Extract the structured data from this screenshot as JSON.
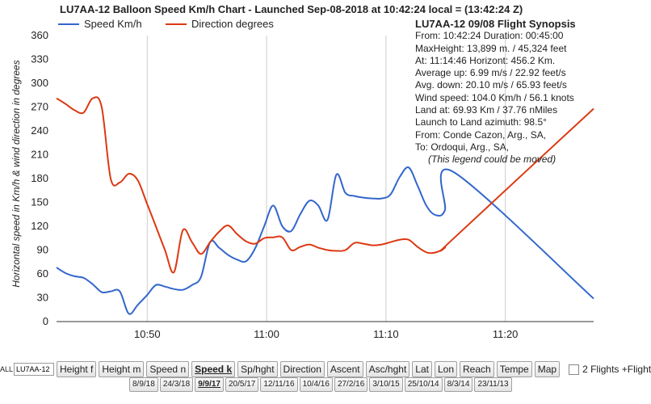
{
  "title": "LU7AA-12 Balloon Speed Km/h Chart - Launched Sep-08-2018 at 10:42:24 local = (13:42:24 Z)",
  "ylabel": "Horizontal speed in Km/h & wind direction in degrees",
  "synopsis": {
    "heading": "LU7AA-12 09/08 Flight Synopsis",
    "lines": [
      "From: 10:42:24 Duration: 00:45:00",
      "MaxHeight: 13,899 m. / 45,324 feet",
      "At: 11:14:46  Horizont: 456.2 Km.",
      "Average up: 6.99 m/s / 22.92 feet/s",
      "Avg. down: 20.10 m/s / 65.93 feet/s",
      "Wind speed: 104.0 Km/h / 56.1 knots",
      "Land at: 69.93 Km / 37.76 nMiles",
      "Launch to Land azimuth: 98.5°",
      "From: Conde Cazon, Arg., SA,",
      "To: Ordoqui, Arg., SA,"
    ],
    "note": "(This legend could be moved)"
  },
  "controls": {
    "prefix": "ALL",
    "callsign_value": "LU7AA-12",
    "buttons": [
      "Height f",
      "Height m",
      "Speed n",
      "Speed k",
      "Sp/hght",
      "Direction",
      "Ascent",
      "Asc/hght",
      "Lat",
      "Lon",
      "Reach",
      "Tempe",
      "Map"
    ],
    "active_button": "Speed k",
    "checkbox_label": "2 Flights +Flight",
    "dates": [
      "8/9/18",
      "24/3/18",
      "9/9/17",
      "20/5/17",
      "12/11/16",
      "10/4/16",
      "27/2/16",
      "3/10/15",
      "25/10/14",
      "8/3/14",
      "23/11/13"
    ],
    "active_date": "9/9/17"
  },
  "chart_data": {
    "type": "line",
    "x_unit": "HH:MM (local, Sep-08-2018)",
    "x_ticks": [
      "10:50",
      "11:00",
      "11:10",
      "11:20"
    ],
    "x_range": [
      "10:42:24",
      "11:27:24"
    ],
    "ylim": [
      0,
      360
    ],
    "y_ticks": [
      0,
      30,
      60,
      90,
      120,
      150,
      180,
      210,
      240,
      270,
      300,
      330,
      360
    ],
    "grid": "vertical lines at x ticks only",
    "legend_position": "top-left",
    "series": [
      {
        "name": "Speed Km/h",
        "color": "#3366cc",
        "points": [
          [
            "10:42:24",
            68
          ],
          [
            "10:43:09",
            61
          ],
          [
            "10:43:55",
            57
          ],
          [
            "10:44:40",
            55
          ],
          [
            "10:45:26",
            47
          ],
          [
            "10:46:11",
            37
          ],
          [
            "10:46:56",
            38
          ],
          [
            "10:47:42",
            38
          ],
          [
            "10:48:27",
            10
          ],
          [
            "10:49:12",
            21
          ],
          [
            "10:49:58",
            33
          ],
          [
            "10:50:43",
            46
          ],
          [
            "10:51:29",
            44
          ],
          [
            "10:52:14",
            41
          ],
          [
            "10:52:59",
            40
          ],
          [
            "10:53:45",
            46
          ],
          [
            "10:54:30",
            56
          ],
          [
            "10:55:16",
            100
          ],
          [
            "10:56:01",
            93
          ],
          [
            "10:56:46",
            84
          ],
          [
            "10:57:32",
            78
          ],
          [
            "10:58:17",
            76
          ],
          [
            "10:59:02",
            92
          ],
          [
            "10:59:48",
            120
          ],
          [
            "11:00:33",
            146
          ],
          [
            "11:01:19",
            120
          ],
          [
            "11:02:04",
            114
          ],
          [
            "11:02:49",
            135
          ],
          [
            "11:03:35",
            152
          ],
          [
            "11:04:20",
            146
          ],
          [
            "11:05:06",
            128
          ],
          [
            "11:05:51",
            185
          ],
          [
            "11:06:36",
            162
          ],
          [
            "11:07:22",
            158
          ],
          [
            "11:08:07",
            156
          ],
          [
            "11:08:52",
            155
          ],
          [
            "11:09:38",
            155
          ],
          [
            "11:10:23",
            160
          ],
          [
            "11:11:09",
            182
          ],
          [
            "11:11:54",
            194
          ],
          [
            "11:12:39",
            171
          ],
          [
            "11:13:25",
            145
          ],
          [
            "11:14:10",
            134
          ],
          [
            "11:14:56",
            140
          ],
          [
            "11:15:41",
            188
          ],
          [
            "11:27:24",
            29
          ]
        ]
      },
      {
        "name": "Direction degrees",
        "color": "#dc3912",
        "points": [
          [
            "10:42:24",
            281
          ],
          [
            "10:43:09",
            274
          ],
          [
            "10:43:55",
            266
          ],
          [
            "10:44:40",
            263
          ],
          [
            "10:45:26",
            281
          ],
          [
            "10:46:11",
            270
          ],
          [
            "10:46:56",
            180
          ],
          [
            "10:47:42",
            175
          ],
          [
            "10:48:27",
            186
          ],
          [
            "10:49:12",
            178
          ],
          [
            "10:49:58",
            149
          ],
          [
            "10:50:43",
            120
          ],
          [
            "10:51:29",
            90
          ],
          [
            "10:52:14",
            62
          ],
          [
            "10:52:59",
            115
          ],
          [
            "10:53:45",
            100
          ],
          [
            "10:54:30",
            85
          ],
          [
            "10:55:16",
            100
          ],
          [
            "10:56:01",
            113
          ],
          [
            "10:56:46",
            121
          ],
          [
            "10:57:32",
            110
          ],
          [
            "10:58:17",
            101
          ],
          [
            "10:59:02",
            98
          ],
          [
            "10:59:48",
            105
          ],
          [
            "11:00:33",
            106
          ],
          [
            "11:01:19",
            106
          ],
          [
            "11:02:04",
            90
          ],
          [
            "11:02:49",
            94
          ],
          [
            "11:03:35",
            97
          ],
          [
            "11:04:20",
            93
          ],
          [
            "11:05:06",
            90
          ],
          [
            "11:05:51",
            89
          ],
          [
            "11:06:36",
            90
          ],
          [
            "11:07:22",
            99
          ],
          [
            "11:08:07",
            98
          ],
          [
            "11:08:52",
            96
          ],
          [
            "11:09:38",
            97
          ],
          [
            "11:10:23",
            100
          ],
          [
            "11:11:09",
            103
          ],
          [
            "11:11:54",
            103
          ],
          [
            "11:12:39",
            94
          ],
          [
            "11:13:25",
            87
          ],
          [
            "11:14:10",
            87
          ],
          [
            "11:14:56",
            93
          ],
          [
            "11:15:41",
            105
          ],
          [
            "11:27:24",
            268
          ]
        ]
      }
    ]
  }
}
